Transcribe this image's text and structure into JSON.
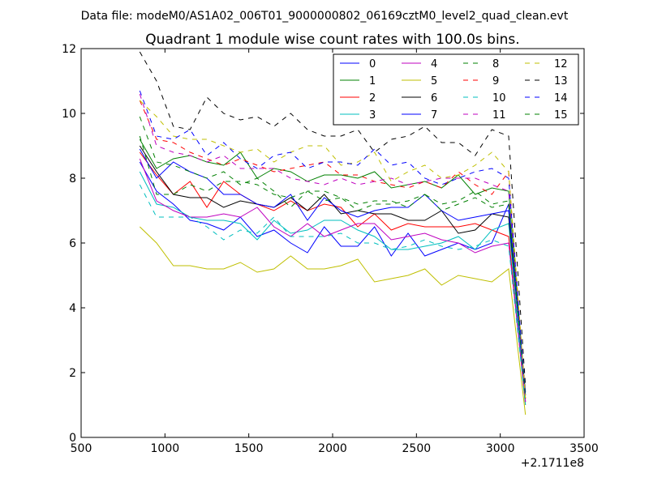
{
  "chart_data": {
    "type": "line",
    "suptitle": "Data file: modeM0/AS1A02_006T01_9000000802_06169cztM0_level2_quad_clean.evt",
    "title": "Quadrant 1 module wise count rates with 100.0s bins.",
    "xlabel": "",
    "ylabel": "",
    "x_offset_label": "+2.1711e8",
    "xlim": [
      500,
      3500
    ],
    "ylim": [
      0,
      12
    ],
    "xticks": [
      500,
      1000,
      1500,
      2000,
      2500,
      3000,
      3500
    ],
    "yticks": [
      0,
      2,
      4,
      6,
      8,
      10,
      12
    ],
    "legend_position": "top-right",
    "legend_columns": 4,
    "x": [
      850,
      950,
      1050,
      1150,
      1250,
      1350,
      1450,
      1550,
      1650,
      1750,
      1850,
      1950,
      2050,
      2150,
      2250,
      2350,
      2450,
      2550,
      2650,
      2750,
      2850,
      2950,
      3050,
      3150
    ],
    "series": [
      {
        "name": "0",
        "color": "#0000ff",
        "dash": "solid",
        "values": [
          8.5,
          7.6,
          7.2,
          6.7,
          6.6,
          6.4,
          6.8,
          6.2,
          6.4,
          6.0,
          5.7,
          6.5,
          5.9,
          5.9,
          6.5,
          5.6,
          6.3,
          5.6,
          5.8,
          6.0,
          5.8,
          6.0,
          7.2,
          1.1
        ]
      },
      {
        "name": "1",
        "color": "#008000",
        "dash": "solid",
        "values": [
          9.2,
          8.3,
          8.6,
          8.7,
          8.5,
          8.4,
          8.8,
          8.0,
          8.3,
          8.2,
          7.9,
          8.1,
          8.1,
          8.0,
          8.2,
          7.7,
          7.8,
          7.9,
          7.7,
          8.1,
          7.5,
          7.7,
          7.6,
          1.3
        ]
      },
      {
        "name": "2",
        "color": "#ff0000",
        "dash": "solid",
        "values": [
          8.8,
          8.1,
          7.5,
          7.9,
          7.1,
          7.9,
          7.5,
          7.2,
          7.0,
          7.3,
          7.0,
          7.2,
          7.1,
          6.5,
          6.9,
          6.4,
          6.6,
          6.5,
          6.5,
          6.5,
          6.6,
          6.4,
          6.2,
          1.0
        ]
      },
      {
        "name": "3",
        "color": "#00bfbf",
        "dash": "solid",
        "values": [
          8.2,
          7.2,
          7.1,
          6.8,
          6.7,
          6.7,
          6.6,
          6.1,
          6.7,
          6.3,
          6.4,
          6.7,
          6.7,
          6.4,
          6.2,
          5.8,
          5.8,
          5.9,
          6.0,
          6.2,
          5.8,
          6.4,
          6.6,
          1.0
        ]
      },
      {
        "name": "4",
        "color": "#bf00bf",
        "dash": "solid",
        "values": [
          8.6,
          7.3,
          7.0,
          6.8,
          6.8,
          6.9,
          6.8,
          7.1,
          6.5,
          6.2,
          6.6,
          6.2,
          6.4,
          6.6,
          6.6,
          6.1,
          6.2,
          6.3,
          6.1,
          6.0,
          5.7,
          5.9,
          6.0,
          1.1
        ]
      },
      {
        "name": "5",
        "color": "#bfbf00",
        "dash": "solid",
        "values": [
          6.5,
          6.0,
          5.3,
          5.3,
          5.2,
          5.2,
          5.4,
          5.1,
          5.2,
          5.6,
          5.2,
          5.2,
          5.3,
          5.5,
          4.8,
          4.9,
          5.0,
          5.2,
          4.7,
          5.0,
          4.9,
          4.8,
          5.2,
          0.7
        ]
      },
      {
        "name": "6",
        "color": "#000000",
        "dash": "solid",
        "values": [
          9.0,
          8.2,
          7.5,
          7.4,
          7.4,
          7.1,
          7.3,
          7.2,
          7.1,
          7.4,
          7.0,
          7.5,
          6.9,
          7.0,
          6.9,
          6.9,
          6.7,
          6.7,
          7.0,
          6.3,
          6.4,
          6.9,
          6.8,
          1.4
        ]
      },
      {
        "name": "7",
        "color": "#0000ff",
        "dash": "solid",
        "values": [
          8.9,
          8.0,
          8.5,
          8.2,
          8.0,
          7.5,
          7.5,
          7.2,
          7.1,
          7.5,
          6.7,
          7.4,
          7.0,
          6.8,
          7.0,
          7.1,
          7.1,
          7.5,
          7.0,
          6.7,
          6.8,
          6.9,
          7.0,
          1.3
        ]
      },
      {
        "name": "8",
        "color": "#008000",
        "dash": "dashed",
        "values": [
          9.9,
          8.5,
          8.4,
          8.2,
          8.0,
          8.2,
          7.8,
          8.0,
          7.6,
          7.1,
          7.6,
          7.6,
          7.4,
          7.0,
          7.2,
          7.2,
          7.3,
          7.5,
          7.0,
          7.2,
          7.4,
          7.1,
          7.2,
          1.2
        ]
      },
      {
        "name": "9",
        "color": "#ff0000",
        "dash": "dashed",
        "values": [
          10.4,
          9.2,
          9.1,
          8.8,
          8.6,
          8.4,
          8.6,
          8.4,
          8.2,
          8.3,
          8.4,
          8.5,
          8.1,
          8.1,
          7.9,
          7.8,
          7.7,
          7.9,
          7.7,
          8.2,
          7.8,
          7.5,
          8.2,
          1.2
        ]
      },
      {
        "name": "10",
        "color": "#00bfbf",
        "dash": "dashed",
        "values": [
          7.8,
          6.8,
          6.8,
          6.8,
          6.5,
          6.1,
          6.4,
          6.3,
          6.8,
          6.2,
          6.2,
          6.2,
          6.3,
          6.0,
          6.0,
          5.8,
          5.9,
          6.1,
          5.9,
          5.8,
          5.9,
          6.1,
          5.9,
          1.0
        ]
      },
      {
        "name": "11",
        "color": "#bf00bf",
        "dash": "dashed",
        "values": [
          10.6,
          9.0,
          8.8,
          8.7,
          8.5,
          8.7,
          8.3,
          8.3,
          8.3,
          8.0,
          7.9,
          7.8,
          8.0,
          7.8,
          7.9,
          8.0,
          7.8,
          7.9,
          8.0,
          8.0,
          8.0,
          7.8,
          7.6,
          1.1
        ]
      },
      {
        "name": "12",
        "color": "#bfbf00",
        "dash": "dashed",
        "values": [
          10.4,
          9.9,
          9.3,
          9.2,
          9.2,
          9.0,
          8.8,
          8.9,
          8.5,
          8.8,
          9.0,
          9.0,
          8.4,
          8.5,
          8.8,
          7.9,
          8.2,
          8.4,
          8.0,
          8.1,
          8.4,
          8.8,
          8.2,
          1.2
        ]
      },
      {
        "name": "13",
        "color": "#000000",
        "dash": "dashed",
        "values": [
          11.9,
          11.0,
          9.6,
          9.5,
          10.5,
          10.0,
          9.8,
          9.9,
          9.6,
          10.0,
          9.5,
          9.3,
          9.3,
          9.5,
          8.8,
          9.2,
          9.3,
          9.6,
          9.1,
          9.1,
          8.7,
          9.5,
          9.3,
          1.6
        ]
      },
      {
        "name": "14",
        "color": "#0000ff",
        "dash": "dashed",
        "values": [
          10.7,
          9.3,
          9.2,
          9.5,
          8.7,
          9.1,
          8.6,
          8.3,
          8.7,
          8.8,
          8.3,
          8.5,
          8.5,
          8.4,
          8.9,
          8.4,
          8.5,
          8.0,
          7.8,
          8.0,
          8.2,
          8.3,
          8.0,
          1.3
        ]
      },
      {
        "name": "15",
        "color": "#008000",
        "dash": "dashed",
        "values": [
          9.3,
          7.5,
          7.5,
          7.8,
          7.6,
          7.9,
          7.9,
          7.8,
          7.5,
          7.4,
          7.6,
          7.3,
          7.4,
          7.2,
          7.3,
          7.3,
          7.1,
          7.5,
          7.2,
          7.3,
          7.6,
          7.2,
          7.3,
          1.2
        ]
      }
    ]
  }
}
